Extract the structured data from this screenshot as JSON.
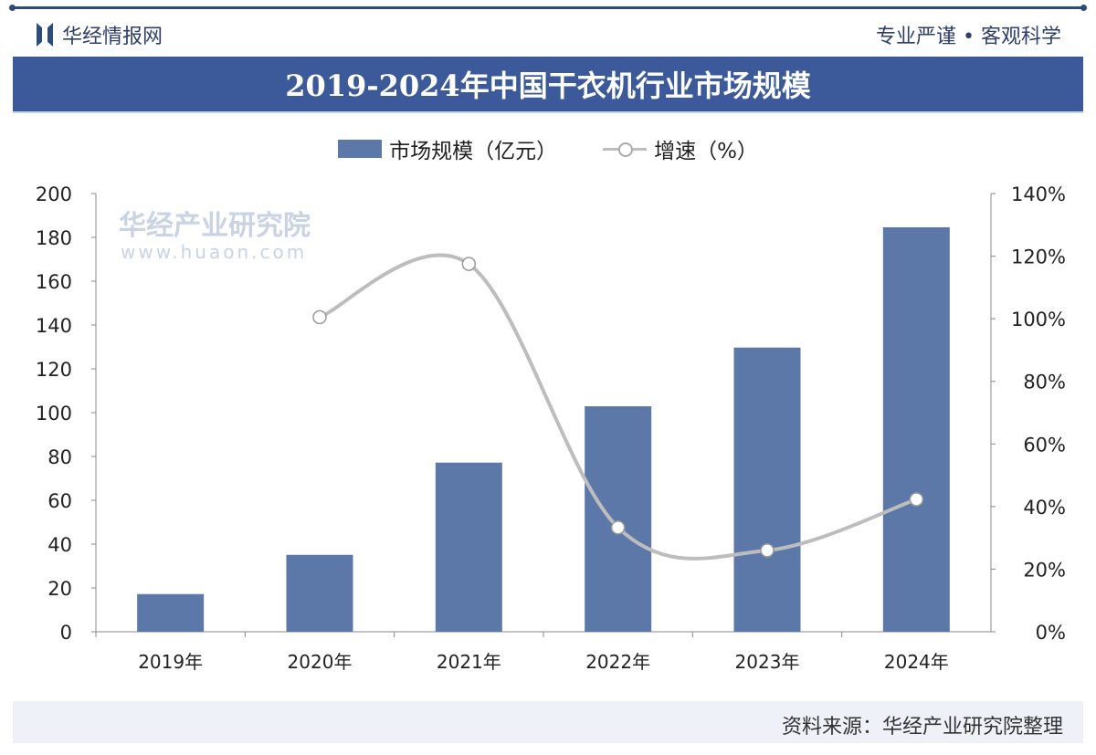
{
  "header": {
    "brand": "华经情报网",
    "slogan": "专业严谨 • 客观科学"
  },
  "title": "2019-2024年中国干衣机行业市场规模",
  "footer": {
    "source": "资料来源：华经产业研究院整理"
  },
  "watermark": {
    "name": "华经产业研究院",
    "url": "www.huaon.com"
  },
  "colors": {
    "bar": "#5c78a8",
    "line": "#bdbdbd",
    "title_bg": "#3c5a9a"
  },
  "chart_data": {
    "type": "bar+line",
    "title": "2019-2024年中国干衣机行业市场规模",
    "categories": [
      "2019年",
      "2020年",
      "2021年",
      "2022年",
      "2023年",
      "2024年"
    ],
    "series": [
      {
        "name": "市场规模（亿元）",
        "type": "bar",
        "axis": "left",
        "values": [
          17.2,
          35.1,
          77.2,
          102.9,
          129.7,
          184.6
        ]
      },
      {
        "name": "增速（%）",
        "type": "line",
        "axis": "right",
        "values": [
          null,
          100.5,
          117.5,
          33.3,
          26.0,
          42.3
        ]
      }
    ],
    "y_left": {
      "range": [
        0,
        200
      ],
      "ticks": [
        "0",
        "20",
        "40",
        "60",
        "80",
        "100",
        "120",
        "140",
        "160",
        "180",
        "200"
      ]
    },
    "y_right": {
      "range": [
        0,
        140
      ],
      "ticks": [
        "0%",
        "20%",
        "40%",
        "60%",
        "80%",
        "100%",
        "120%",
        "140%"
      ]
    },
    "legend": "top-center",
    "grid": false
  }
}
